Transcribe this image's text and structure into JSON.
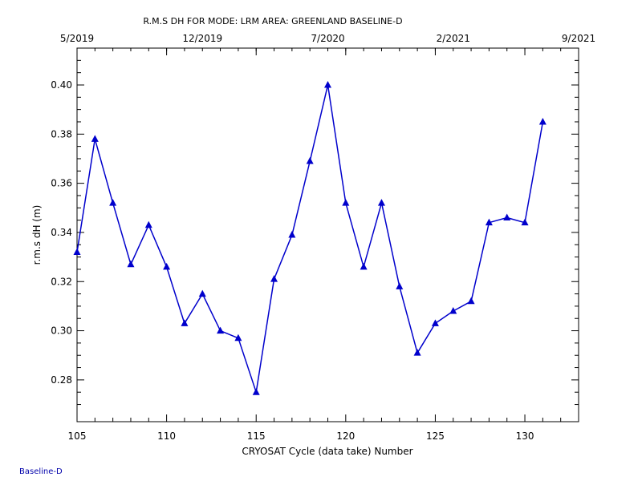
{
  "footer_label": "Baseline-D",
  "chart_data": {
    "type": "line",
    "title": "R.M.S DH FOR MODE: LRM AREA: GREENLAND BASELINE-D",
    "xlabel": "CRYOSAT Cycle (data take) Number",
    "ylabel": "r.m.s dH (m)",
    "xlim": [
      105,
      133
    ],
    "ylim": [
      0.263,
      0.415
    ],
    "x_ticks": [
      105,
      110,
      115,
      120,
      125,
      130
    ],
    "y_ticks": [
      0.28,
      0.3,
      0.32,
      0.34,
      0.36,
      0.38,
      0.4
    ],
    "y_tick_labels": [
      "0.28",
      "0.30",
      "0.32",
      "0.34",
      "0.36",
      "0.38",
      "0.40"
    ],
    "top_axis_ticks": [
      {
        "x": 105,
        "label": "5/2019"
      },
      {
        "x": 112,
        "label": "12/2019"
      },
      {
        "x": 119,
        "label": "7/2020"
      },
      {
        "x": 126,
        "label": "2/2021"
      },
      {
        "x": 133,
        "label": "9/2021"
      }
    ],
    "grid": false,
    "series": [
      {
        "marker": "triangle",
        "color": "#0000cc",
        "x": [
          105,
          106,
          107,
          108,
          109,
          110,
          111,
          112,
          113,
          114,
          115,
          116,
          117,
          118,
          119,
          120,
          121,
          122,
          123,
          124,
          125,
          126,
          127,
          128,
          129,
          130,
          131
        ],
        "y": [
          0.332,
          0.378,
          0.352,
          0.327,
          0.343,
          0.326,
          0.303,
          0.315,
          0.3,
          0.297,
          0.275,
          0.321,
          0.339,
          0.369,
          0.4,
          0.352,
          0.326,
          0.352,
          0.318,
          0.291,
          0.303,
          0.308,
          0.312,
          0.344,
          0.346,
          0.344,
          0.385
        ]
      }
    ]
  }
}
